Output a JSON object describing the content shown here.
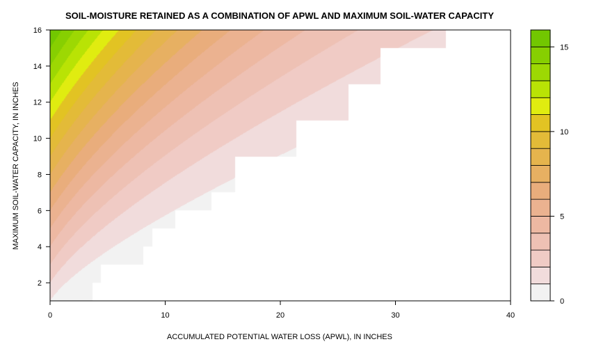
{
  "chart_data": {
    "type": "heatmap",
    "subtype": "filled-contour",
    "title": "SOIL-MOISTURE RETAINED AS A COMBINATION OF APWL AND MAXIMUM SOIL-WATER CAPACITY",
    "xlabel": "ACCUMULATED POTENTIAL WATER LOSS (APWL), IN INCHES",
    "ylabel": "MAXIMUM SOIL-WATER CAPACITY, IN INCHES",
    "xlim": [
      0,
      40
    ],
    "ylim": [
      1,
      16
    ],
    "x_ticks": [
      0,
      10,
      20,
      30,
      40
    ],
    "y_ticks": [
      2,
      4,
      6,
      8,
      10,
      12,
      14,
      16
    ],
    "z_model": "z = y * exp(-x / y)",
    "zlim": [
      0,
      16
    ],
    "levels": [
      0,
      1,
      2,
      3,
      4,
      5,
      6,
      7,
      8,
      9,
      10,
      11,
      12,
      13,
      14,
      15,
      16
    ],
    "colors": [
      "#f2f2f2",
      "#f1dcdc",
      "#f0cbc5",
      "#eec1b4",
      "#edb8a2",
      "#ebb290",
      "#e9ad7c",
      "#e7b062",
      "#e5b44d",
      "#e3bb38",
      "#e2c323",
      "#e0ec10",
      "#b9e305",
      "#9dd803",
      "#87cf01",
      "#72c700",
      "#5cbf00"
    ],
    "colorbar_ticks": [
      0,
      5,
      10,
      15
    ],
    "data_max_apwl_by_capacity": [
      {
        "capacity": 1,
        "max_apwl": 3.7
      },
      {
        "capacity": 2,
        "max_apwl": 4.4
      },
      {
        "capacity": 3,
        "max_apwl": 8.1
      },
      {
        "capacity": 4,
        "max_apwl": 8.9
      },
      {
        "capacity": 5,
        "max_apwl": 10.9
      },
      {
        "capacity": 6,
        "max_apwl": 14.0
      },
      {
        "capacity": 7,
        "max_apwl": 16.1
      },
      {
        "capacity": 8,
        "max_apwl": 16.1
      },
      {
        "capacity": 9,
        "max_apwl": 21.4
      },
      {
        "capacity": 10,
        "max_apwl": 21.4
      },
      {
        "capacity": 11,
        "max_apwl": 25.9
      },
      {
        "capacity": 12,
        "max_apwl": 25.9
      },
      {
        "capacity": 13,
        "max_apwl": 28.7
      },
      {
        "capacity": 14,
        "max_apwl": 28.7
      },
      {
        "capacity": 15,
        "max_apwl": 34.4
      },
      {
        "capacity": 16,
        "max_apwl": 34.4
      }
    ]
  }
}
